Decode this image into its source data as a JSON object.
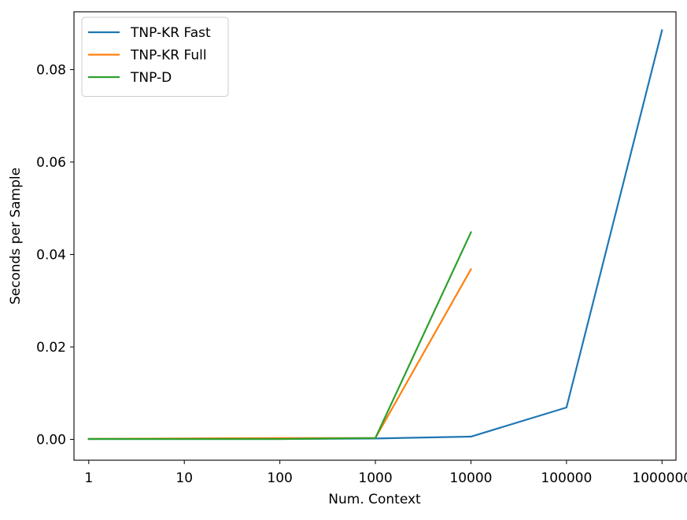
{
  "chart_data": {
    "type": "line",
    "title": "",
    "xlabel": "Num. Context",
    "ylabel": "Seconds per Sample",
    "x_scale": "log",
    "x_categories": [
      "1",
      "10",
      "100",
      "1000",
      "10000",
      "100000",
      "1000000"
    ],
    "xlim": [
      0.7,
      1400000
    ],
    "ylim": [
      -0.0045,
      0.0925
    ],
    "y_ticks": [
      0.0,
      0.02,
      0.04,
      0.06,
      0.08
    ],
    "y_tick_labels": [
      "0.00",
      "0.02",
      "0.04",
      "0.06",
      "0.08"
    ],
    "grid": false,
    "legend_position": "top-left",
    "series": [
      {
        "name": "TNP-KR Fast",
        "color": "#1f77b4",
        "x": [
          1,
          10,
          100,
          1000,
          10000,
          100000,
          1000000
        ],
        "y": [
          0.0001,
          0.0001,
          0.0001,
          0.0002,
          0.0006,
          0.0069,
          0.0885
        ]
      },
      {
        "name": "TNP-KR Full",
        "color": "#ff7f0e",
        "x": [
          1,
          10,
          100,
          1000,
          10000
        ],
        "y": [
          0.0001,
          0.0002,
          0.0003,
          0.0003,
          0.0368
        ]
      },
      {
        "name": "TNP-D",
        "color": "#2ca02c",
        "x": [
          1,
          10,
          100,
          1000,
          10000
        ],
        "y": [
          0.0001,
          0.0001,
          0.0001,
          0.0003,
          0.0448
        ]
      }
    ]
  }
}
